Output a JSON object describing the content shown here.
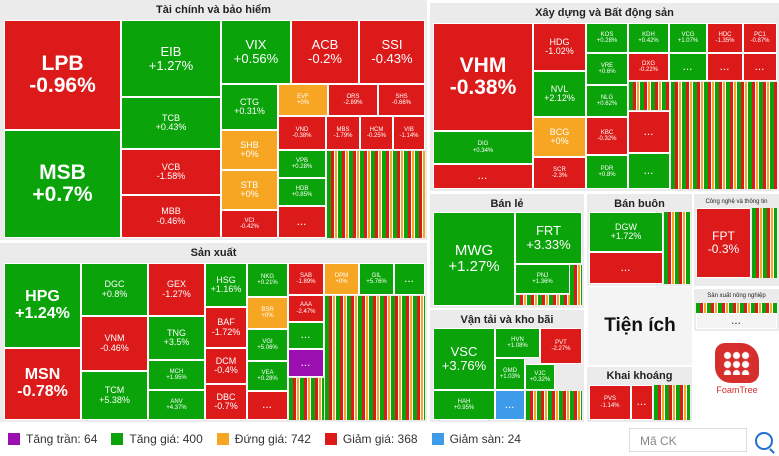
{
  "colors": {
    "ceiling": "#9b0fb0",
    "up": "#0aa30a",
    "flat": "#f6a623",
    "down": "#dd1a1a",
    "floor": "#3d9be9"
  },
  "groups": {
    "finance": "Tài chính và bảo hiểm",
    "construction": "Xây dựng và Bất động sản",
    "production": "Sản xuất",
    "retail": "Bán lẻ",
    "wholesale": "Bán buôn",
    "it": "Công nghệ và thông tin",
    "transport": "Vận tải và kho bãi",
    "utilities": "Tiện ích",
    "agriculture": "Sản xuất nông nghiệp",
    "mining": "Khai khoáng"
  },
  "more": "...",
  "tiles": {
    "lpb": {
      "ticker": "LPB",
      "change": "-0.96%"
    },
    "msb": {
      "ticker": "MSB",
      "change": "+0.7%"
    },
    "eib": {
      "ticker": "EIB",
      "change": "+1.27%"
    },
    "tcb": {
      "ticker": "TCB",
      "change": "+0.43%"
    },
    "vcb": {
      "ticker": "VCB",
      "change": "-1.58%"
    },
    "mbb": {
      "ticker": "MBB",
      "change": "-0.46%"
    },
    "vix": {
      "ticker": "VIX",
      "change": "+0.56%"
    },
    "acb": {
      "ticker": "ACB",
      "change": "-0.2%"
    },
    "ssi": {
      "ticker": "SSI",
      "change": "-0.43%"
    },
    "ctg": {
      "ticker": "CTG",
      "change": "+0.31%"
    },
    "evf": {
      "ticker": "EVF",
      "change": "+0%"
    },
    "ors": {
      "ticker": "ORS",
      "change": "-2.89%"
    },
    "shs": {
      "ticker": "SHS",
      "change": "-0.66%"
    },
    "shb": {
      "ticker": "SHB",
      "change": "+0%"
    },
    "vnd": {
      "ticker": "VND",
      "change": "-0.38%"
    },
    "mbs": {
      "ticker": "MBS",
      "change": "-1.79%"
    },
    "hcm": {
      "ticker": "HCM",
      "change": "-0.25%"
    },
    "vib": {
      "ticker": "VIB",
      "change": "-1.14%"
    },
    "stb": {
      "ticker": "STB",
      "change": "+0%"
    },
    "vpb": {
      "ticker": "VPB",
      "change": "+0.28%"
    },
    "hdb": {
      "ticker": "HDB",
      "change": "+0.85%"
    },
    "vci": {
      "ticker": "VCI",
      "change": "-0.42%"
    },
    "vhm": {
      "ticker": "VHM",
      "change": "-0.38%"
    },
    "dig": {
      "ticker": "DIG",
      "change": "+0.34%"
    },
    "hdg": {
      "ticker": "HDG",
      "change": "-1.02%"
    },
    "nvl": {
      "ticker": "NVL",
      "change": "+2.12%"
    },
    "bcg": {
      "ticker": "BCG",
      "change": "+0%"
    },
    "scr": {
      "ticker": "SCR",
      "change": "-2.3%"
    },
    "kos": {
      "ticker": "KOS",
      "change": "+0.28%"
    },
    "kdh": {
      "ticker": "KDH",
      "change": "+0.42%"
    },
    "vcg": {
      "ticker": "VCG",
      "change": "+1.07%"
    },
    "hdc": {
      "ticker": "HDC",
      "change": "-1.35%"
    },
    "pc1": {
      "ticker": "PC1",
      "change": "-0.87%"
    },
    "vre": {
      "ticker": "VRE",
      "change": "+0.6%"
    },
    "dxg": {
      "ticker": "DXG",
      "change": "-0.22%"
    },
    "nlg": {
      "ticker": "NLG",
      "change": "+0.62%"
    },
    "kbc": {
      "ticker": "KBC",
      "change": "-0.32%"
    },
    "pdr": {
      "ticker": "PDR",
      "change": "+0.8%"
    },
    "mwg": {
      "ticker": "MWG",
      "change": "+1.27%"
    },
    "frt": {
      "ticker": "FRT",
      "change": "+3.33%"
    },
    "pnj": {
      "ticker": "PNJ",
      "change": "+1.36%"
    },
    "dgw": {
      "ticker": "DGW",
      "change": "+1.72%"
    },
    "fpt": {
      "ticker": "FPT",
      "change": "-0.3%"
    },
    "hpg": {
      "ticker": "HPG",
      "change": "+1.24%"
    },
    "msn": {
      "ticker": "MSN",
      "change": "-0.78%"
    },
    "dgc": {
      "ticker": "DGC",
      "change": "+0.8%"
    },
    "vnm": {
      "ticker": "VNM",
      "change": "-0.46%"
    },
    "tcm": {
      "ticker": "TCM",
      "change": "+5.38%"
    },
    "gex": {
      "ticker": "GEX",
      "change": "-1.27%"
    },
    "tng": {
      "ticker": "TNG",
      "change": "+3.5%"
    },
    "mch": {
      "ticker": "MCH",
      "change": "+1.95%"
    },
    "anv": {
      "ticker": "ANV",
      "change": "+4.37%"
    },
    "hsg": {
      "ticker": "HSG",
      "change": "+1.16%"
    },
    "nkg": {
      "ticker": "NKG",
      "change": "+0.21%"
    },
    "sab": {
      "ticker": "SAB",
      "change": "-1.89%"
    },
    "dpm": {
      "ticker": "DPM",
      "change": "+0%"
    },
    "gil": {
      "ticker": "GIL",
      "change": "+5.76%"
    },
    "baf": {
      "ticker": "BAF",
      "change": "-1.72%"
    },
    "bsr": {
      "ticker": "BSR",
      "change": "+0%"
    },
    "aaa": {
      "ticker": "AAA",
      "change": "-2.47%"
    },
    "vgi": {
      "ticker": "VGI",
      "change": "+5.06%"
    },
    "dcm": {
      "ticker": "DCM",
      "change": "-0.4%"
    },
    "vea": {
      "ticker": "VEA",
      "change": "+0.28%"
    },
    "dbc": {
      "ticker": "DBC",
      "change": "-0.7%"
    },
    "vsc": {
      "ticker": "VSC",
      "change": "+3.76%"
    },
    "hvn": {
      "ticker": "HVN",
      "change": "+1.08%"
    },
    "pvt": {
      "ticker": "PVT",
      "change": "-2.27%"
    },
    "gmd": {
      "ticker": "GMD",
      "change": "+1.03%"
    },
    "vjc": {
      "ticker": "VJC",
      "change": "+0.32%"
    },
    "hah": {
      "ticker": "HAH",
      "change": "+0.95%"
    },
    "pvs": {
      "ticker": "PVS",
      "change": "-1.14%"
    }
  },
  "legend": [
    {
      "label": "Tăng trần: 64",
      "color": "#9b0fb0"
    },
    {
      "label": "Tăng giá: 400",
      "color": "#0aa30a"
    },
    {
      "label": "Đứng giá: 742",
      "color": "#f6a623"
    },
    {
      "label": "Giảm giá: 368",
      "color": "#dd1a1a"
    },
    {
      "label": "Giảm sàn: 24",
      "color": "#3d9be9"
    }
  ],
  "search": {
    "placeholder": "Mã CK"
  },
  "logo": {
    "text": "FoamTree"
  }
}
